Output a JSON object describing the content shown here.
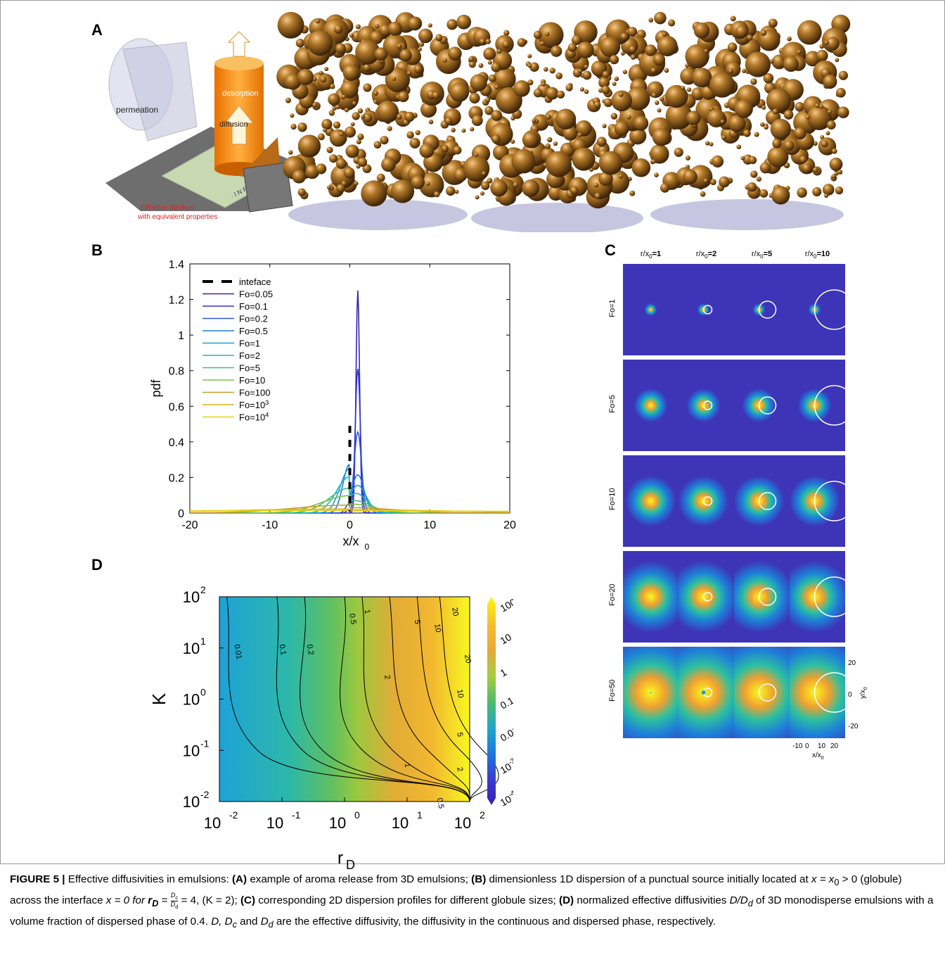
{
  "panels": {
    "A": "A",
    "B": "B",
    "C": "C",
    "D": "D"
  },
  "panel_a": {
    "labels": {
      "desorption": "desorption",
      "diffusion": "diffusion",
      "permeation": "permeation",
      "inra": "· I N R A ·",
      "medium_line1": "Effective Medium",
      "medium_line2": "with equivalent properties"
    },
    "colors": {
      "sphere": "#8a5a18",
      "shadow": "#b8b8d8",
      "cylinder": "#f08a10",
      "caption_red": "#e02020"
    }
  },
  "chart_data": [
    {
      "id": "B",
      "type": "line",
      "xlabel": "x/x",
      "xlabel_sub": "0",
      "ylabel": "pdf",
      "xlim": [
        -20,
        20
      ],
      "ylim": [
        0,
        1.4
      ],
      "xticks": [
        -20,
        -10,
        0,
        10,
        20
      ],
      "yticks": [
        0,
        0.2,
        0.4,
        0.6,
        0.8,
        1,
        1.2,
        1.4
      ],
      "ytick_labels": [
        "0",
        "0.2",
        "0.4",
        "0.6",
        "0.8",
        "1",
        "1.2",
        "1.4"
      ],
      "interface_label": "inteface",
      "series": [
        {
          "name": "Fo=0.05",
          "color": "#3326b0",
          "peak": 1.25,
          "peak_x": 1.0,
          "width_r": 0.32,
          "left_peak": 0.0,
          "left_width": 0.3
        },
        {
          "name": "Fo=0.1",
          "color": "#3535c8",
          "peak": 0.81,
          "peak_x": 1.0,
          "width_r": 0.45,
          "left_peak": 0.02,
          "left_width": 0.4
        },
        {
          "name": "Fo=0.2",
          "color": "#2f55d8",
          "peak": 0.455,
          "peak_x": 1.0,
          "width_r": 0.65,
          "left_peak": 0.05,
          "left_width": 0.6
        },
        {
          "name": "Fo=0.5",
          "color": "#1f7ae0",
          "peak": 0.215,
          "peak_x": 1.0,
          "width_r": 1.1,
          "left_peak": 0.26,
          "left_width": 1.1
        },
        {
          "name": "Fo=1",
          "color": "#1aa0e0",
          "peak": 0.155,
          "peak_x": 1.0,
          "width_r": 1.5,
          "left_peak": 0.235,
          "left_width": 1.6
        },
        {
          "name": "Fo=2",
          "color": "#22b8b0",
          "peak": 0.11,
          "peak_x": 0.8,
          "width_r": 2.0,
          "left_peak": 0.19,
          "left_width": 2.3
        },
        {
          "name": "Fo=5",
          "color": "#3ac080",
          "peak": 0.07,
          "peak_x": 0.5,
          "width_r": 3.0,
          "left_peak": 0.13,
          "left_width": 3.5
        },
        {
          "name": "Fo=10",
          "color": "#7cc040",
          "peak": 0.05,
          "peak_x": 0.3,
          "width_r": 4.0,
          "left_peak": 0.09,
          "left_width": 5.0
        },
        {
          "name": "Fo=100",
          "color": "#c89a2a",
          "peak": 0.03,
          "peak_x": 0.0,
          "width_r": 8.0,
          "left_peak": 0.04,
          "left_width": 10.0
        },
        {
          "name": "Fo=10",
          "name_sup": "3",
          "color": "#d8b418",
          "peak": 0.018,
          "peak_x": 0.0,
          "width_r": 18.0,
          "left_peak": 0.02,
          "left_width": 22.0
        },
        {
          "name": "Fo=10",
          "name_sup": "4",
          "color": "#e8d010",
          "peak": 0.012,
          "peak_x": 0.0,
          "width_r": 40.0,
          "left_peak": 0.013,
          "left_width": 45.0
        }
      ]
    },
    {
      "id": "D",
      "type": "heatmap",
      "xlabel": "r",
      "xlabel_sub": "D",
      "ylabel": "K",
      "x_scale": "log",
      "y_scale": "log",
      "xtick_exponents": [
        "-2",
        "-1",
        "0",
        "1",
        "2"
      ],
      "ytick_exponents": [
        "2",
        "1",
        "0",
        "-1",
        "-2"
      ],
      "colorbar": {
        "labels": [
          "100",
          "10",
          "1",
          "0.1",
          "0.01",
          "10^-3",
          "10^-4"
        ],
        "colors": [
          "#f8f810",
          "#f4c030",
          "#e8a838",
          "#a8cc40",
          "#50bc68",
          "#20a8c8",
          "#1c7adc",
          "#3a3ad0",
          "#3a20b0"
        ]
      },
      "contour_labels": [
        "0.01",
        "0.1",
        "0.2",
        "0.5",
        "1",
        "2",
        "5",
        "10",
        "20",
        "0.5",
        "1",
        "2",
        "5",
        "10",
        "20"
      ]
    },
    {
      "id": "C",
      "type": "heatmap",
      "column_titles": [
        {
          "pre": "r/x",
          "sub": "0",
          "val": "=1"
        },
        {
          "pre": "r/x",
          "sub": "0",
          "val": "=2"
        },
        {
          "pre": "r/x",
          "sub": "0",
          "val": "=5"
        },
        {
          "pre": "r/x",
          "sub": "0",
          "val": "=10"
        }
      ],
      "row_titles": [
        "Fo=1",
        "Fo=5",
        "Fo=10",
        "Fo=20",
        "Fo=50"
      ],
      "x_ticks": [
        "-10",
        "0",
        "10",
        "20"
      ],
      "y_ticks": [
        "20",
        "0",
        "-20"
      ],
      "xlabel": "x/x",
      "xlabel_sub": "0",
      "ylabel": "y/x",
      "ylabel_sub": "0",
      "background": "#3e34b8"
    }
  ],
  "caption": {
    "fig": "FIGURE 5 |",
    "intro": " Effective diffusivities in emulsions: ",
    "a": "(A)",
    "a_text": " example of aroma release from 3D emulsions; ",
    "b": "(B)",
    "b_text": " dimensionless 1D dispersion of a punctual source initially located at ",
    "b_x0": "x = x",
    "b_gt": " > 0 (globule) across the interface ",
    "b_x": "x = 0 for ",
    "rd": "r",
    "rd_sub": "D",
    "eq": " = ",
    "frac_num": "D",
    "frac_num_sub": "c",
    "frac_den": "D",
    "frac_den_sub": "d",
    "b_tail": " = 4,  (K = 2); ",
    "c": "(C)",
    "c_text": " corresponding 2D dispersion profiles for different globule sizes; ",
    "d": "(D)",
    "d_text": " normalized effective diffusivities ",
    "d_ratio": "D/D",
    "d_ratio_sub": "d",
    "d_text2": " of 3D monodisperse emulsions with a volume fraction of dispersed phase of 0.4. ",
    "d_vars": "D, D",
    "d_vars_c": "c",
    "d_and": " and ",
    "d_dd": "D",
    "d_dd_sub": "d",
    "d_tail": " are the effective diffusivity, the diffusivity in the continuous and dispersed phase, respectively."
  }
}
